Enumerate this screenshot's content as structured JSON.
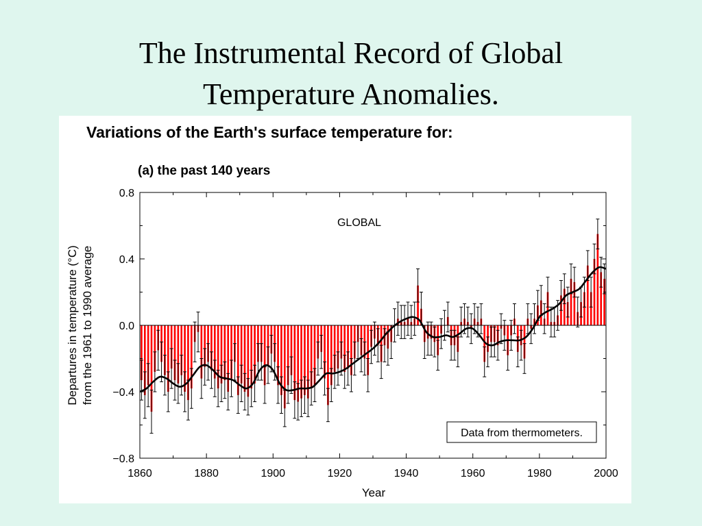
{
  "slide": {
    "title_line1": "The Instrumental Record of Global",
    "title_line2": "Temperature Anomalies."
  },
  "figure": {
    "heading": "Variations of the Earth's surface temperature for:",
    "subheading": "(a) the past 140 years",
    "region_label": "GLOBAL",
    "source_note": "Data from thermometers."
  },
  "colors": {
    "bar": "#ff0000",
    "smooth_line": "#000000",
    "error_bar": "#000000",
    "background": "#dff6ee"
  },
  "chart_data": {
    "type": "bar",
    "title": "Variations of the Earth's surface temperature for:",
    "subtitle": "(a) the past 140 years",
    "xlabel": "Year",
    "ylabel_line1": "Departures in temperature (°C)",
    "ylabel_line2": "from the 1961 to 1990 average",
    "xlim": [
      1860,
      2000
    ],
    "ylim": [
      -0.8,
      0.8
    ],
    "x_ticks": [
      1860,
      1880,
      1900,
      1920,
      1940,
      1960,
      1980,
      2000
    ],
    "y_ticks": [
      0.8,
      0.4,
      0.0,
      -0.4,
      -0.8
    ],
    "y_tick_labels": [
      "0.8",
      "0.4",
      "0.0",
      "−0.4",
      "−0.8"
    ],
    "grid": false,
    "series": [
      {
        "values": [
          {
            "x": 1861,
            "y": -0.33,
            "err": 0.12
          },
          {
            "x": 1862,
            "y": -0.42,
            "err": 0.14
          },
          {
            "x": 1863,
            "y": -0.36,
            "err": 0.13
          },
          {
            "x": 1864,
            "y": -0.52,
            "err": 0.13
          },
          {
            "x": 1865,
            "y": -0.28,
            "err": 0.12
          },
          {
            "x": 1866,
            "y": -0.15,
            "err": 0.12
          },
          {
            "x": 1867,
            "y": -0.22,
            "err": 0.12
          },
          {
            "x": 1868,
            "y": -0.3,
            "err": 0.12
          },
          {
            "x": 1869,
            "y": -0.4,
            "err": 0.12
          },
          {
            "x": 1870,
            "y": -0.26,
            "err": 0.12
          },
          {
            "x": 1871,
            "y": -0.33,
            "err": 0.12
          },
          {
            "x": 1872,
            "y": -0.35,
            "err": 0.12
          },
          {
            "x": 1873,
            "y": -0.3,
            "err": 0.12
          },
          {
            "x": 1874,
            "y": -0.4,
            "err": 0.12
          },
          {
            "x": 1875,
            "y": -0.45,
            "err": 0.12
          },
          {
            "x": 1876,
            "y": -0.38,
            "err": 0.12
          },
          {
            "x": 1877,
            "y": -0.1,
            "err": 0.12
          },
          {
            "x": 1878,
            "y": -0.04,
            "err": 0.12
          },
          {
            "x": 1879,
            "y": -0.32,
            "err": 0.12
          },
          {
            "x": 1880,
            "y": -0.25,
            "err": 0.11
          },
          {
            "x": 1881,
            "y": -0.22,
            "err": 0.11
          },
          {
            "x": 1882,
            "y": -0.27,
            "err": 0.11
          },
          {
            "x": 1883,
            "y": -0.32,
            "err": 0.11
          },
          {
            "x": 1884,
            "y": -0.38,
            "err": 0.11
          },
          {
            "x": 1885,
            "y": -0.35,
            "err": 0.11
          },
          {
            "x": 1886,
            "y": -0.33,
            "err": 0.11
          },
          {
            "x": 1887,
            "y": -0.4,
            "err": 0.11
          },
          {
            "x": 1888,
            "y": -0.32,
            "err": 0.11
          },
          {
            "x": 1889,
            "y": -0.22,
            "err": 0.11
          },
          {
            "x": 1890,
            "y": -0.42,
            "err": 0.11
          },
          {
            "x": 1891,
            "y": -0.35,
            "err": 0.11
          },
          {
            "x": 1892,
            "y": -0.4,
            "err": 0.11
          },
          {
            "x": 1893,
            "y": -0.43,
            "err": 0.11
          },
          {
            "x": 1894,
            "y": -0.38,
            "err": 0.11
          },
          {
            "x": 1895,
            "y": -0.35,
            "err": 0.11
          },
          {
            "x": 1896,
            "y": -0.22,
            "err": 0.11
          },
          {
            "x": 1897,
            "y": -0.22,
            "err": 0.11
          },
          {
            "x": 1898,
            "y": -0.36,
            "err": 0.11
          },
          {
            "x": 1899,
            "y": -0.24,
            "err": 0.11
          },
          {
            "x": 1900,
            "y": -0.17,
            "err": 0.11
          },
          {
            "x": 1901,
            "y": -0.22,
            "err": 0.11
          },
          {
            "x": 1902,
            "y": -0.36,
            "err": 0.11
          },
          {
            "x": 1903,
            "y": -0.42,
            "err": 0.11
          },
          {
            "x": 1904,
            "y": -0.5,
            "err": 0.11
          },
          {
            "x": 1905,
            "y": -0.36,
            "err": 0.11
          },
          {
            "x": 1906,
            "y": -0.3,
            "err": 0.11
          },
          {
            "x": 1907,
            "y": -0.45,
            "err": 0.11
          },
          {
            "x": 1908,
            "y": -0.46,
            "err": 0.11
          },
          {
            "x": 1909,
            "y": -0.44,
            "err": 0.11
          },
          {
            "x": 1910,
            "y": -0.42,
            "err": 0.11
          },
          {
            "x": 1911,
            "y": -0.44,
            "err": 0.11
          },
          {
            "x": 1912,
            "y": -0.38,
            "err": 0.1
          },
          {
            "x": 1913,
            "y": -0.36,
            "err": 0.1
          },
          {
            "x": 1914,
            "y": -0.2,
            "err": 0.1
          },
          {
            "x": 1915,
            "y": -0.16,
            "err": 0.1
          },
          {
            "x": 1916,
            "y": -0.32,
            "err": 0.1
          },
          {
            "x": 1917,
            "y": -0.48,
            "err": 0.1
          },
          {
            "x": 1918,
            "y": -0.36,
            "err": 0.1
          },
          {
            "x": 1919,
            "y": -0.28,
            "err": 0.1
          },
          {
            "x": 1920,
            "y": -0.26,
            "err": 0.1
          },
          {
            "x": 1921,
            "y": -0.2,
            "err": 0.1
          },
          {
            "x": 1922,
            "y": -0.28,
            "err": 0.1
          },
          {
            "x": 1923,
            "y": -0.26,
            "err": 0.1
          },
          {
            "x": 1924,
            "y": -0.3,
            "err": 0.1
          },
          {
            "x": 1925,
            "y": -0.2,
            "err": 0.1
          },
          {
            "x": 1926,
            "y": -0.1,
            "err": 0.1
          },
          {
            "x": 1927,
            "y": -0.18,
            "err": 0.1
          },
          {
            "x": 1928,
            "y": -0.2,
            "err": 0.1
          },
          {
            "x": 1929,
            "y": -0.3,
            "err": 0.1
          },
          {
            "x": 1930,
            "y": -0.13,
            "err": 0.1
          },
          {
            "x": 1931,
            "y": -0.08,
            "err": 0.1
          },
          {
            "x": 1932,
            "y": -0.12,
            "err": 0.1
          },
          {
            "x": 1933,
            "y": -0.22,
            "err": 0.1
          },
          {
            "x": 1934,
            "y": -0.12,
            "err": 0.1
          },
          {
            "x": 1935,
            "y": -0.14,
            "err": 0.1
          },
          {
            "x": 1936,
            "y": -0.1,
            "err": 0.1
          },
          {
            "x": 1937,
            "y": 0.0,
            "err": 0.1
          },
          {
            "x": 1938,
            "y": 0.04,
            "err": 0.1
          },
          {
            "x": 1939,
            "y": 0.02,
            "err": 0.1
          },
          {
            "x": 1940,
            "y": 0.02,
            "err": 0.1
          },
          {
            "x": 1941,
            "y": 0.04,
            "err": 0.1
          },
          {
            "x": 1942,
            "y": 0.02,
            "err": 0.1
          },
          {
            "x": 1943,
            "y": 0.04,
            "err": 0.1
          },
          {
            "x": 1944,
            "y": 0.24,
            "err": 0.1
          },
          {
            "x": 1945,
            "y": 0.1,
            "err": 0.1
          },
          {
            "x": 1946,
            "y": -0.1,
            "err": 0.1
          },
          {
            "x": 1947,
            "y": -0.08,
            "err": 0.1
          },
          {
            "x": 1948,
            "y": -0.08,
            "err": 0.1
          },
          {
            "x": 1949,
            "y": -0.1,
            "err": 0.09
          },
          {
            "x": 1950,
            "y": -0.18,
            "err": 0.09
          },
          {
            "x": 1951,
            "y": -0.05,
            "err": 0.09
          },
          {
            "x": 1952,
            "y": 0.0,
            "err": 0.09
          },
          {
            "x": 1953,
            "y": 0.05,
            "err": 0.09
          },
          {
            "x": 1954,
            "y": -0.12,
            "err": 0.09
          },
          {
            "x": 1955,
            "y": -0.12,
            "err": 0.09
          },
          {
            "x": 1956,
            "y": -0.16,
            "err": 0.09
          },
          {
            "x": 1957,
            "y": 0.02,
            "err": 0.09
          },
          {
            "x": 1958,
            "y": 0.04,
            "err": 0.09
          },
          {
            "x": 1959,
            "y": 0.02,
            "err": 0.09
          },
          {
            "x": 1960,
            "y": -0.02,
            "err": 0.09
          },
          {
            "x": 1961,
            "y": 0.04,
            "err": 0.09
          },
          {
            "x": 1962,
            "y": 0.02,
            "err": 0.09
          },
          {
            "x": 1963,
            "y": 0.04,
            "err": 0.09
          },
          {
            "x": 1964,
            "y": -0.22,
            "err": 0.09
          },
          {
            "x": 1965,
            "y": -0.16,
            "err": 0.09
          },
          {
            "x": 1966,
            "y": -0.1,
            "err": 0.09
          },
          {
            "x": 1967,
            "y": -0.1,
            "err": 0.09
          },
          {
            "x": 1968,
            "y": -0.12,
            "err": 0.09
          },
          {
            "x": 1969,
            "y": -0.02,
            "err": 0.09
          },
          {
            "x": 1970,
            "y": -0.06,
            "err": 0.09
          },
          {
            "x": 1971,
            "y": -0.18,
            "err": 0.09
          },
          {
            "x": 1972,
            "y": -0.06,
            "err": 0.09
          },
          {
            "x": 1973,
            "y": 0.04,
            "err": 0.09
          },
          {
            "x": 1974,
            "y": -0.16,
            "err": 0.09
          },
          {
            "x": 1975,
            "y": -0.12,
            "err": 0.09
          },
          {
            "x": 1976,
            "y": -0.2,
            "err": 0.09
          },
          {
            "x": 1977,
            "y": 0.04,
            "err": 0.09
          },
          {
            "x": 1978,
            "y": -0.02,
            "err": 0.09
          },
          {
            "x": 1979,
            "y": 0.04,
            "err": 0.09
          },
          {
            "x": 1980,
            "y": 0.12,
            "err": 0.09
          },
          {
            "x": 1981,
            "y": 0.15,
            "err": 0.09
          },
          {
            "x": 1982,
            "y": 0.04,
            "err": 0.09
          },
          {
            "x": 1983,
            "y": 0.2,
            "err": 0.09
          },
          {
            "x": 1984,
            "y": 0.02,
            "err": 0.09
          },
          {
            "x": 1985,
            "y": 0.02,
            "err": 0.09
          },
          {
            "x": 1986,
            "y": 0.06,
            "err": 0.09
          },
          {
            "x": 1987,
            "y": 0.18,
            "err": 0.09
          },
          {
            "x": 1988,
            "y": 0.22,
            "err": 0.09
          },
          {
            "x": 1989,
            "y": 0.14,
            "err": 0.09
          },
          {
            "x": 1990,
            "y": 0.28,
            "err": 0.09
          },
          {
            "x": 1991,
            "y": 0.26,
            "err": 0.09
          },
          {
            "x": 1992,
            "y": 0.08,
            "err": 0.09
          },
          {
            "x": 1993,
            "y": 0.14,
            "err": 0.09
          },
          {
            "x": 1994,
            "y": 0.2,
            "err": 0.09
          },
          {
            "x": 1995,
            "y": 0.36,
            "err": 0.09
          },
          {
            "x": 1996,
            "y": 0.2,
            "err": 0.09
          },
          {
            "x": 1997,
            "y": 0.4,
            "err": 0.09
          },
          {
            "x": 1998,
            "y": 0.55,
            "err": 0.09
          },
          {
            "x": 1999,
            "y": 0.32,
            "err": 0.09
          },
          {
            "x": 2000,
            "y": 0.28,
            "err": 0.09
          }
        ]
      }
    ],
    "smoothed_curve": [
      {
        "x": 1860,
        "y": -0.4
      },
      {
        "x": 1862,
        "y": -0.38
      },
      {
        "x": 1864,
        "y": -0.34
      },
      {
        "x": 1866,
        "y": -0.31
      },
      {
        "x": 1868,
        "y": -0.32
      },
      {
        "x": 1870,
        "y": -0.35
      },
      {
        "x": 1872,
        "y": -0.37
      },
      {
        "x": 1874,
        "y": -0.35
      },
      {
        "x": 1876,
        "y": -0.3
      },
      {
        "x": 1878,
        "y": -0.25
      },
      {
        "x": 1880,
        "y": -0.24
      },
      {
        "x": 1882,
        "y": -0.27
      },
      {
        "x": 1884,
        "y": -0.31
      },
      {
        "x": 1886,
        "y": -0.32
      },
      {
        "x": 1888,
        "y": -0.33
      },
      {
        "x": 1890,
        "y": -0.36
      },
      {
        "x": 1892,
        "y": -0.38
      },
      {
        "x": 1894,
        "y": -0.35
      },
      {
        "x": 1896,
        "y": -0.27
      },
      {
        "x": 1898,
        "y": -0.24
      },
      {
        "x": 1900,
        "y": -0.27
      },
      {
        "x": 1902,
        "y": -0.35
      },
      {
        "x": 1904,
        "y": -0.39
      },
      {
        "x": 1906,
        "y": -0.39
      },
      {
        "x": 1908,
        "y": -0.38
      },
      {
        "x": 1910,
        "y": -0.38
      },
      {
        "x": 1912,
        "y": -0.37
      },
      {
        "x": 1914,
        "y": -0.33
      },
      {
        "x": 1916,
        "y": -0.29
      },
      {
        "x": 1918,
        "y": -0.29
      },
      {
        "x": 1920,
        "y": -0.28
      },
      {
        "x": 1922,
        "y": -0.26
      },
      {
        "x": 1924,
        "y": -0.23
      },
      {
        "x": 1926,
        "y": -0.2
      },
      {
        "x": 1928,
        "y": -0.17
      },
      {
        "x": 1930,
        "y": -0.14
      },
      {
        "x": 1932,
        "y": -0.1
      },
      {
        "x": 1934,
        "y": -0.05
      },
      {
        "x": 1936,
        "y": -0.01
      },
      {
        "x": 1938,
        "y": 0.02
      },
      {
        "x": 1940,
        "y": 0.04
      },
      {
        "x": 1942,
        "y": 0.05
      },
      {
        "x": 1944,
        "y": 0.03
      },
      {
        "x": 1946,
        "y": -0.04
      },
      {
        "x": 1948,
        "y": -0.07
      },
      {
        "x": 1950,
        "y": -0.07
      },
      {
        "x": 1952,
        "y": -0.06
      },
      {
        "x": 1954,
        "y": -0.07
      },
      {
        "x": 1956,
        "y": -0.05
      },
      {
        "x": 1958,
        "y": -0.02
      },
      {
        "x": 1960,
        "y": -0.02
      },
      {
        "x": 1962,
        "y": -0.06
      },
      {
        "x": 1964,
        "y": -0.11
      },
      {
        "x": 1966,
        "y": -0.12
      },
      {
        "x": 1968,
        "y": -0.1
      },
      {
        "x": 1970,
        "y": -0.09
      },
      {
        "x": 1972,
        "y": -0.09
      },
      {
        "x": 1974,
        "y": -0.09
      },
      {
        "x": 1976,
        "y": -0.07
      },
      {
        "x": 1978,
        "y": -0.02
      },
      {
        "x": 1980,
        "y": 0.05
      },
      {
        "x": 1982,
        "y": 0.08
      },
      {
        "x": 1984,
        "y": 0.1
      },
      {
        "x": 1986,
        "y": 0.13
      },
      {
        "x": 1988,
        "y": 0.18
      },
      {
        "x": 1990,
        "y": 0.2
      },
      {
        "x": 1992,
        "y": 0.22
      },
      {
        "x": 1994,
        "y": 0.27
      },
      {
        "x": 1996,
        "y": 0.32
      },
      {
        "x": 1998,
        "y": 0.35
      },
      {
        "x": 2000,
        "y": 0.34
      }
    ]
  }
}
